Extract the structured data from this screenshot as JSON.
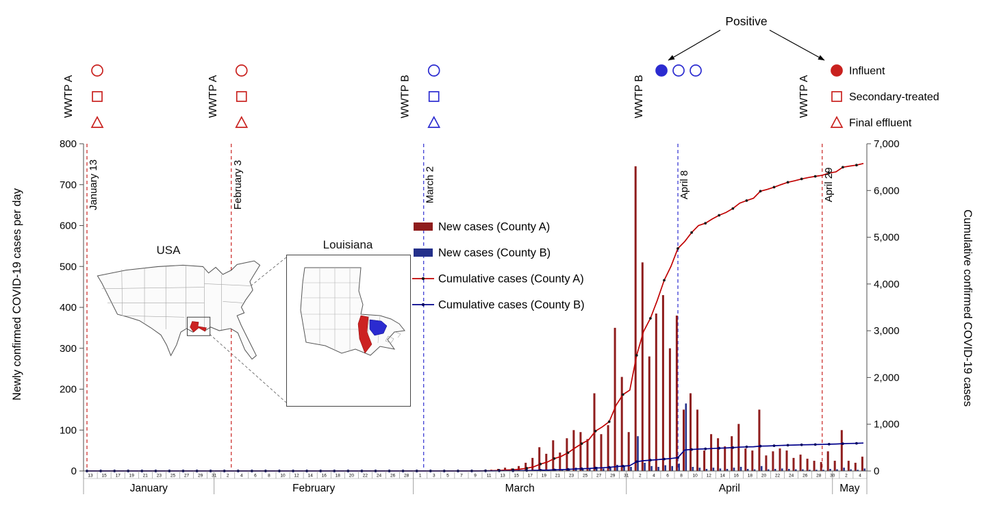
{
  "figure": {
    "background": "#ffffff"
  },
  "colors": {
    "county_a_bar": "#8f1d1d",
    "county_a_line": "#c00000",
    "county_a_marker": "#1a1a1a",
    "county_b_bar": "#24308a",
    "county_b_line": "#00008b",
    "county_b_marker": "#000060",
    "wwtp_a": "#c9211e",
    "wwtp_b": "#2b2bd0",
    "axis": "#4d4d4d"
  },
  "axes": {
    "left_title": "Newly confirmed COVID-19 cases per day",
    "right_title": "Cumulative confirmed COVID-19 cases",
    "left_ticks": [
      0,
      100,
      200,
      300,
      400,
      500,
      600,
      700,
      800
    ],
    "right_tick_labels": [
      "0",
      "1,000",
      "2,000",
      "3,000",
      "4,000",
      "5,000",
      "6,000",
      "7,000"
    ]
  },
  "legend": {
    "items": [
      {
        "id": "new_a",
        "label": "New cases (County A)",
        "swatch": "bar",
        "color_key": "county_a_bar"
      },
      {
        "id": "new_b",
        "label": "New cases (County B)",
        "swatch": "bar",
        "color_key": "county_b_bar"
      },
      {
        "id": "cum_a",
        "label": "Cumulative cases (County A)",
        "swatch": "line",
        "color_key": "county_a_line"
      },
      {
        "id": "cum_b",
        "label": "Cumulative cases (County B)",
        "swatch": "line",
        "color_key": "county_b_line"
      }
    ]
  },
  "annotations": {
    "positive_label": "Positive",
    "sample_type_legend": [
      {
        "shape": "circle",
        "filled": true,
        "label": "Influent"
      },
      {
        "shape": "square",
        "filled": false,
        "label": "Secondary-treated"
      },
      {
        "shape": "triangle",
        "filled": false,
        "label": "Final effluent"
      }
    ],
    "events": [
      {
        "date_label": "January 13",
        "day_index": 0,
        "plant": "WWTP A",
        "color": "red",
        "layout": "vertical",
        "samples": [
          {
            "shape": "circle",
            "filled": false
          },
          {
            "shape": "square",
            "filled": false
          },
          {
            "shape": "triangle",
            "filled": false
          }
        ]
      },
      {
        "date_label": "February 3",
        "day_index": 21,
        "plant": "WWTP A",
        "color": "red",
        "layout": "vertical",
        "samples": [
          {
            "shape": "circle",
            "filled": false
          },
          {
            "shape": "square",
            "filled": false
          },
          {
            "shape": "triangle",
            "filled": false
          }
        ]
      },
      {
        "date_label": "March 2",
        "day_index": 49,
        "plant": "WWTP B",
        "color": "blue",
        "layout": "vertical",
        "samples": [
          {
            "shape": "circle",
            "filled": false
          },
          {
            "shape": "square",
            "filled": false
          },
          {
            "shape": "triangle",
            "filled": false
          }
        ]
      },
      {
        "date_label": "April 8",
        "day_index": 86,
        "plant": "WWTP B",
        "color": "blue",
        "layout": "horizontal",
        "samples": [
          {
            "shape": "circle",
            "filled": true
          },
          {
            "shape": "circle",
            "filled": false
          },
          {
            "shape": "circle",
            "filled": false
          }
        ]
      },
      {
        "date_label": "April 29",
        "day_index": 107,
        "plant": "WWTP A",
        "color": "red",
        "layout": "legend-row",
        "samples": [
          {
            "shape": "circle",
            "filled": true
          },
          {
            "shape": "square",
            "filled": false
          },
          {
            "shape": "triangle",
            "filled": false
          }
        ]
      }
    ]
  },
  "maps": {
    "usa_label": "USA",
    "inset_label": "Louisiana"
  },
  "chart_data": {
    "type": "bar",
    "description": "Daily new and cumulative confirmed COVID-19 cases for County A (red) and County B (blue), January 13 - May 5, 2020; bars = new cases per day (left axis), dotted lines = cumulative cases (right axis).",
    "left_ylim": [
      0,
      800
    ],
    "right_ylim": [
      0,
      7000
    ],
    "months": [
      {
        "label": "January",
        "start_day": 13,
        "end_day": 31
      },
      {
        "label": "February",
        "start_day": 1,
        "end_day": 29
      },
      {
        "label": "March",
        "start_day": 1,
        "end_day": 31
      },
      {
        "label": "April",
        "start_day": 1,
        "end_day": 30
      },
      {
        "label": "May",
        "start_day": 1,
        "end_day": 5
      }
    ],
    "series": [
      {
        "id": "new_a",
        "name": "New cases (County A)",
        "type": "bar",
        "axis": "left",
        "values": [
          0,
          0,
          0,
          0,
          0,
          0,
          0,
          0,
          0,
          0,
          0,
          0,
          0,
          0,
          0,
          0,
          0,
          0,
          0,
          0,
          0,
          0,
          0,
          0,
          0,
          0,
          0,
          0,
          0,
          0,
          0,
          0,
          0,
          0,
          0,
          0,
          0,
          0,
          0,
          0,
          0,
          0,
          0,
          0,
          0,
          0,
          0,
          0,
          0,
          0,
          0,
          0,
          0,
          0,
          0,
          0,
          1,
          1,
          2,
          3,
          5,
          8,
          6,
          12,
          20,
          32,
          58,
          42,
          75,
          45,
          80,
          100,
          95,
          78,
          190,
          90,
          112,
          350,
          230,
          95,
          745,
          510,
          280,
          385,
          430,
          300,
          380,
          150,
          190,
          150,
          50,
          90,
          80,
          60,
          85,
          115,
          55,
          50,
          150,
          38,
          48,
          55,
          50,
          32,
          40,
          30,
          25,
          22,
          48,
          25,
          100,
          25,
          20,
          35
        ]
      },
      {
        "id": "new_b",
        "name": "New cases (County B)",
        "type": "bar",
        "axis": "left",
        "values": [
          0,
          0,
          0,
          0,
          0,
          0,
          0,
          0,
          0,
          0,
          0,
          0,
          0,
          0,
          0,
          0,
          0,
          0,
          0,
          0,
          0,
          0,
          0,
          0,
          0,
          0,
          0,
          0,
          0,
          0,
          0,
          0,
          0,
          0,
          0,
          0,
          0,
          0,
          0,
          0,
          0,
          0,
          0,
          0,
          0,
          0,
          0,
          0,
          0,
          0,
          0,
          0,
          0,
          0,
          0,
          0,
          0,
          0,
          1,
          1,
          1,
          1,
          1,
          2,
          2,
          3,
          4,
          3,
          5,
          4,
          6,
          8,
          6,
          5,
          10,
          6,
          8,
          15,
          12,
          10,
          85,
          20,
          12,
          10,
          14,
          12,
          18,
          165,
          10,
          8,
          5,
          8,
          6,
          5,
          8,
          10,
          5,
          4,
          12,
          4,
          5,
          6,
          5,
          4,
          4,
          3,
          3,
          3,
          5,
          4,
          8,
          4,
          3,
          6
        ]
      },
      {
        "id": "cum_a",
        "name": "Cumulative cases (County A)",
        "type": "line",
        "axis": "right",
        "derived": "running_total_of_new_a"
      },
      {
        "id": "cum_b",
        "name": "Cumulative cases (County B)",
        "type": "line",
        "axis": "right",
        "derived": "running_total_of_new_b"
      }
    ]
  }
}
